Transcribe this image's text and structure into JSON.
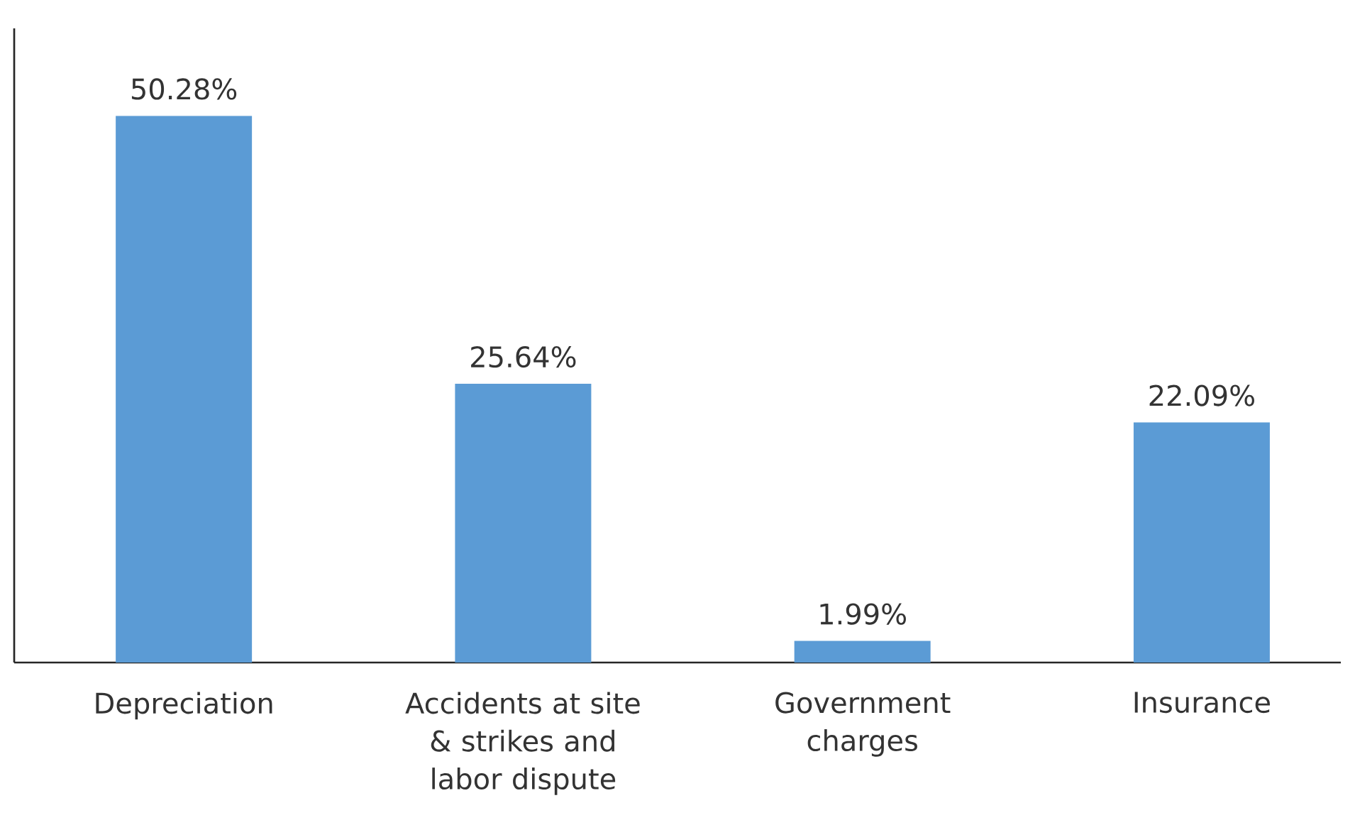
{
  "chart_data": {
    "type": "bar",
    "categories": [
      "Depreciation",
      "Accidents at site & strikes and labor dispute",
      "Government charges",
      "Insurance"
    ],
    "values": [
      50.28,
      25.64,
      1.99,
      22.09
    ],
    "value_labels": [
      "50.28%",
      "25.64%",
      "1.99%",
      "22.09%"
    ],
    "color": "#5b9bd5"
  }
}
